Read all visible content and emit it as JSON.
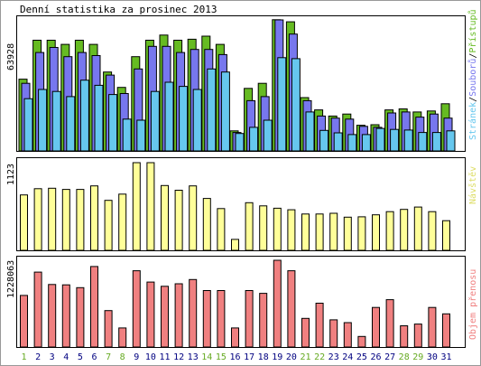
{
  "chart_data": [
    {
      "type": "bar",
      "title": "Denní statistika za prosinec 2013",
      "ylabel_value": "63928",
      "right_label_parts": [
        "Stránek",
        "/",
        "Souborů",
        "/",
        "Přístupů"
      ],
      "categories": [
        "1",
        "2",
        "3",
        "4",
        "5",
        "6",
        "7",
        "8",
        "9",
        "10",
        "11",
        "12",
        "13",
        "14",
        "15",
        "16",
        "17",
        "18",
        "19",
        "20",
        "21",
        "22",
        "23",
        "24",
        "25",
        "26",
        "27",
        "28",
        "29",
        "30",
        "31"
      ],
      "ylim": [
        0,
        63928
      ],
      "series": [
        {
          "name": "Přístupů",
          "color": "#66bb22",
          "values": [
            35000,
            54000,
            54000,
            52000,
            54000,
            52000,
            38500,
            31000,
            46000,
            54000,
            56500,
            54000,
            54500,
            56000,
            52000,
            9800,
            30500,
            33000,
            64000,
            63000,
            26000,
            20000,
            17000,
            18000,
            12500,
            12800,
            20000,
            20500,
            19000,
            19500,
            23000
          ]
        },
        {
          "name": "Souborů",
          "color": "#7777ee",
          "values": [
            33000,
            48000,
            50500,
            46000,
            48000,
            46500,
            37000,
            28000,
            40000,
            51000,
            51000,
            48000,
            49500,
            49500,
            47000,
            9000,
            24500,
            26500,
            63928,
            57000,
            24500,
            17000,
            16000,
            15500,
            12000,
            11500,
            18500,
            19000,
            16500,
            18000,
            16000
          ]
        },
        {
          "name": "Stránek",
          "color": "#66c7ee",
          "values": [
            25500,
            30000,
            29000,
            26500,
            34500,
            32000,
            27500,
            15500,
            15000,
            29000,
            33500,
            31500,
            30000,
            40000,
            38500,
            8500,
            11500,
            15000,
            45500,
            45000,
            19000,
            10000,
            8800,
            8000,
            8000,
            11000,
            10500,
            10200,
            9000,
            9000,
            9800
          ]
        }
      ]
    },
    {
      "type": "bar",
      "ylabel_value": "1123",
      "right_label": "Návštěv",
      "ylim": [
        0,
        1123
      ],
      "series": [
        {
          "name": "Návštěv",
          "color": "#ffff99",
          "values": [
            710,
            790,
            795,
            780,
            780,
            825,
            640,
            720,
            1123,
            1123,
            830,
            770,
            825,
            665,
            535,
            140,
            610,
            570,
            540,
            520,
            465,
            465,
            475,
            425,
            430,
            455,
            495,
            525,
            555,
            495,
            380
          ]
        }
      ]
    },
    {
      "type": "bar",
      "ylabel_value": "1228063",
      "right_label": "Objem přenosu",
      "ylim": [
        0,
        1228063
      ],
      "series": [
        {
          "name": "Objem přenosu",
          "color": "#f08080",
          "values": [
            730000,
            1060000,
            885000,
            880000,
            840000,
            1140000,
            515000,
            270000,
            1080000,
            920000,
            860000,
            895000,
            955000,
            800000,
            800000,
            270000,
            800000,
            760000,
            1228063,
            1080000,
            405000,
            620000,
            385000,
            345000,
            150000,
            560000,
            670000,
            300000,
            325000,
            560000,
            470000
          ]
        }
      ]
    }
  ],
  "weekend_days": [
    "1",
    "7",
    "8",
    "14",
    "15",
    "21",
    "22",
    "28",
    "29"
  ],
  "colors": {
    "background": "#ffffff",
    "panel_border": "#000000",
    "ylabel_color": "#000000",
    "weekend_label": "#66aa22",
    "weekday_label": "#000080"
  }
}
